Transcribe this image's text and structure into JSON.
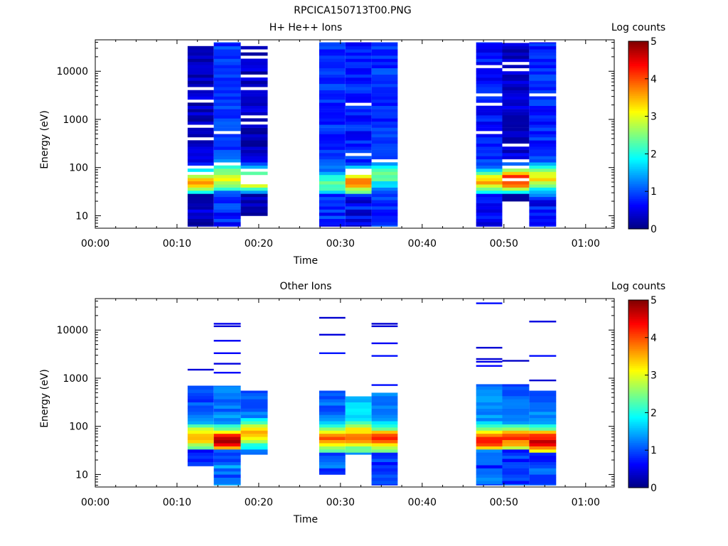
{
  "figure_title": "RPCICA150713T00.PNG",
  "colormap": [
    "#00007f",
    "#0000ff",
    "#007fff",
    "#00ffff",
    "#7fff7f",
    "#ffff00",
    "#ff7f00",
    "#ff0000",
    "#7f0000"
  ],
  "chart_data": [
    {
      "type": "heatmap",
      "title": "H+ He++ Ions",
      "xlabel": "Time",
      "ylabel": "Energy (eV)",
      "xlim_minutes": [
        0,
        63.5
      ],
      "ylim": [
        5.5,
        45000
      ],
      "yscale": "log",
      "xticks": [
        {
          "label": "00:00",
          "minutes": 0
        },
        {
          "label": "00:10",
          "minutes": 10
        },
        {
          "label": "00:20",
          "minutes": 20
        },
        {
          "label": "00:30",
          "minutes": 30
        },
        {
          "label": "00:40",
          "minutes": 40
        },
        {
          "label": "00:50",
          "minutes": 50
        },
        {
          "label": "01:00",
          "minutes": 60
        }
      ],
      "yticks": [
        {
          "label": "10",
          "value": 10
        },
        {
          "label": "100",
          "value": 100
        },
        {
          "label": "1000",
          "value": 1000
        },
        {
          "label": "10000",
          "value": 10000
        }
      ],
      "colorbar": {
        "label": "Log counts",
        "min": 0,
        "max": 5,
        "ticks": [
          "0",
          "1",
          "2",
          "3",
          "4",
          "5"
        ]
      },
      "columns": [
        {
          "start_minutes": 11.3,
          "end_minutes": 14.5,
          "emin": 6,
          "emax": 40000,
          "peak_energy": 50,
          "peak_level": 3.6,
          "background_level": 0.35,
          "gap_fraction": 0.22,
          "low_cut": 30,
          "seed": 11
        },
        {
          "start_minutes": 14.5,
          "end_minutes": 17.8,
          "emin": 6,
          "emax": 40000,
          "peak_energy": 60,
          "peak_level": 3.1,
          "background_level": 0.9,
          "gap_fraction": 0.03,
          "low_cut": 35,
          "seed": 12
        },
        {
          "start_minutes": 17.8,
          "end_minutes": 21.1,
          "emin": 10,
          "emax": 36000,
          "peak_energy": 55,
          "peak_level": 3.3,
          "background_level": 0.35,
          "gap_fraction": 0.2,
          "low_cut": 28,
          "seed": 13
        },
        {
          "start_minutes": 27.4,
          "end_minutes": 30.6,
          "emin": 6,
          "emax": 40000,
          "peak_energy": 45,
          "peak_level": 2.3,
          "background_level": 0.85,
          "gap_fraction": 0.0,
          "low_cut": 30,
          "seed": 21
        },
        {
          "start_minutes": 30.6,
          "end_minutes": 33.8,
          "emin": 6,
          "emax": 40000,
          "peak_energy": 50,
          "peak_level": 3.8,
          "background_level": 0.75,
          "gap_fraction": 0.12,
          "low_cut": 30,
          "seed": 22
        },
        {
          "start_minutes": 33.8,
          "end_minutes": 37.0,
          "emin": 6,
          "emax": 40000,
          "peak_energy": 70,
          "peak_level": 2.4,
          "background_level": 0.85,
          "gap_fraction": 0.02,
          "low_cut": 28,
          "seed": 23
        },
        {
          "start_minutes": 46.6,
          "end_minutes": 49.8,
          "emin": 6,
          "emax": 40000,
          "peak_energy": 50,
          "peak_level": 3.4,
          "background_level": 0.7,
          "gap_fraction": 0.06,
          "low_cut": 30,
          "seed": 31
        },
        {
          "start_minutes": 49.8,
          "end_minutes": 53.1,
          "emin": 20,
          "emax": 40000,
          "peak_energy": 55,
          "peak_level": 4.3,
          "background_level": 0.4,
          "gap_fraction": 0.12,
          "low_cut": 30,
          "seed": 32
        },
        {
          "start_minutes": 53.1,
          "end_minutes": 56.4,
          "emin": 6,
          "emax": 40000,
          "peak_energy": 60,
          "peak_level": 3.2,
          "background_level": 0.8,
          "gap_fraction": 0.02,
          "low_cut": 25,
          "seed": 33
        }
      ]
    },
    {
      "type": "heatmap",
      "title": "Other Ions",
      "xlabel": "Time",
      "ylabel": "Energy (eV)",
      "xlim_minutes": [
        0,
        63.5
      ],
      "ylim": [
        5.5,
        45000
      ],
      "yscale": "log",
      "xticks": [
        {
          "label": "00:00",
          "minutes": 0
        },
        {
          "label": "00:10",
          "minutes": 10
        },
        {
          "label": "00:20",
          "minutes": 20
        },
        {
          "label": "00:30",
          "minutes": 30
        },
        {
          "label": "00:40",
          "minutes": 40
        },
        {
          "label": "00:50",
          "minutes": 50
        },
        {
          "label": "01:00",
          "minutes": 60
        }
      ],
      "yticks": [
        {
          "label": "10",
          "value": 10
        },
        {
          "label": "100",
          "value": 100
        },
        {
          "label": "1000",
          "value": 1000
        },
        {
          "label": "10000",
          "value": 10000
        }
      ],
      "colorbar": {
        "label": "Log counts",
        "min": 0,
        "max": 5,
        "ticks": [
          "0",
          "1",
          "2",
          "3",
          "4",
          "5"
        ]
      },
      "columns": [
        {
          "start_minutes": 11.3,
          "end_minutes": 14.5,
          "emin": 15,
          "emax": 700,
          "peak_energy": 60,
          "peak_level": 3.6,
          "background_level": 1.0,
          "gap_fraction": 0.0,
          "low_cut": 35,
          "extra_lines": [
            1500
          ],
          "seed": 41
        },
        {
          "start_minutes": 14.5,
          "end_minutes": 17.8,
          "emin": 6,
          "emax": 700,
          "peak_energy": 50,
          "peak_level": 4.7,
          "background_level": 1.2,
          "gap_fraction": 0.0,
          "low_cut": 35,
          "extra_lines": [
            1300,
            2000,
            3300,
            6000,
            12000,
            13500
          ],
          "seed": 42
        },
        {
          "start_minutes": 17.8,
          "end_minutes": 21.1,
          "emin": 26,
          "emax": 550,
          "peak_energy": 70,
          "peak_level": 3.5,
          "background_level": 1.1,
          "gap_fraction": 0.0,
          "low_cut": 32,
          "extra_lines": [],
          "seed": 43
        },
        {
          "start_minutes": 27.4,
          "end_minutes": 30.6,
          "emin": 10,
          "emax": 550,
          "peak_energy": 55,
          "peak_level": 3.9,
          "background_level": 1.1,
          "gap_fraction": 0.0,
          "low_cut": 30,
          "extra_lines": [
            3300,
            8000,
            18000
          ],
          "seed": 51
        },
        {
          "start_minutes": 30.6,
          "end_minutes": 33.8,
          "emin": 26,
          "emax": 420,
          "peak_energy": 60,
          "peak_level": 3.8,
          "background_level": 1.6,
          "gap_fraction": 0.0,
          "low_cut": 28,
          "extra_lines": [],
          "seed": 52
        },
        {
          "start_minutes": 33.8,
          "end_minutes": 37.0,
          "emin": 6,
          "emax": 500,
          "peak_energy": 55,
          "peak_level": 4.0,
          "background_level": 1.2,
          "gap_fraction": 0.0,
          "low_cut": 30,
          "extra_lines": [
            720,
            2900,
            5300,
            12000,
            13500
          ],
          "seed": 53
        },
        {
          "start_minutes": 46.6,
          "end_minutes": 49.8,
          "emin": 6,
          "emax": 750,
          "peak_energy": 50,
          "peak_level": 4.3,
          "background_level": 1.2,
          "gap_fraction": 0.0,
          "low_cut": 35,
          "extra_lines": [
            1800,
            2200,
            2500,
            4300,
            36000
          ],
          "seed": 61
        },
        {
          "start_minutes": 49.8,
          "end_minutes": 53.1,
          "emin": 6,
          "emax": 750,
          "peak_energy": 55,
          "peak_level": 4.0,
          "background_level": 1.1,
          "gap_fraction": 0.0,
          "low_cut": 32,
          "extra_lines": [
            2300
          ],
          "seed": 62
        },
        {
          "start_minutes": 53.1,
          "end_minutes": 56.4,
          "emin": 6,
          "emax": 550,
          "peak_energy": 50,
          "peak_level": 4.6,
          "background_level": 1.2,
          "gap_fraction": 0.0,
          "low_cut": 30,
          "extra_lines": [
            900,
            2900,
            15000
          ],
          "seed": 63
        }
      ]
    }
  ]
}
